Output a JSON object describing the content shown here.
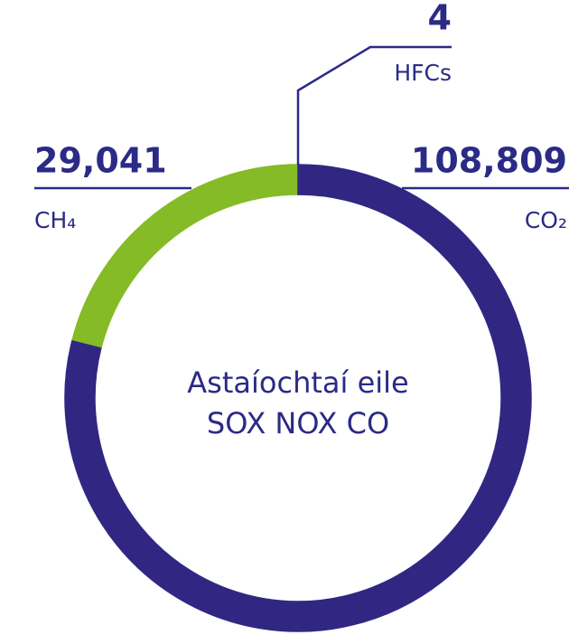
{
  "chart_data": {
    "type": "donut",
    "center_text": [
      "Astaíochtaí eile",
      "SOX NOX CO"
    ],
    "series": [
      {
        "name": "CO₂",
        "color": "#312783",
        "values": [
          108809
        ],
        "value_labels": [
          "108,809"
        ]
      },
      {
        "name": "CH₄",
        "color": "#84bb26",
        "values": [
          29041
        ],
        "value_labels": [
          "29,041"
        ]
      },
      {
        "name": "HFCs",
        "color": "#1ea0e0",
        "values": [
          4
        ],
        "value_labels": [
          "4"
        ]
      }
    ]
  }
}
